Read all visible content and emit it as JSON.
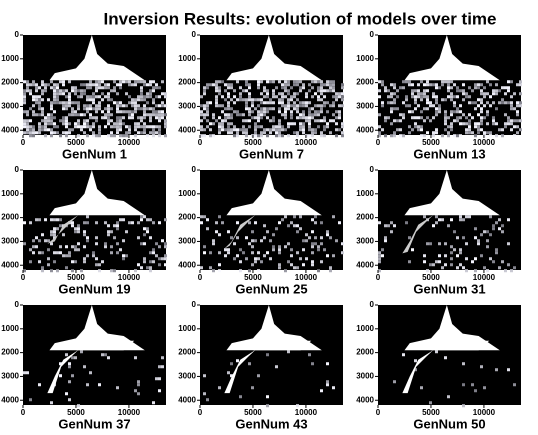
{
  "title": "Inversion Results:  evolution of models over time",
  "panels": [
    {
      "label": "GenNum 1"
    },
    {
      "label": "GenNum 7"
    },
    {
      "label": "GenNum 13"
    },
    {
      "label": "GenNum 19"
    },
    {
      "label": "GenNum 25"
    },
    {
      "label": "GenNum 31"
    },
    {
      "label": "GenNum 37"
    },
    {
      "label": "GenNum 43"
    },
    {
      "label": "GenNum 50"
    }
  ],
  "xlim": [
    0,
    13500
  ],
  "ylim": [
    0,
    4200
  ],
  "xticks": [
    0,
    5000,
    10000
  ],
  "yticks": [
    0,
    1000,
    2000,
    3000,
    4000
  ]
}
